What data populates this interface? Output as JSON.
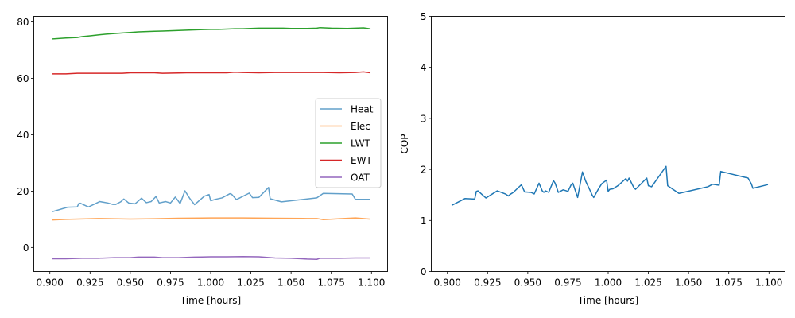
{
  "chart_data": [
    {
      "type": "line",
      "title": "",
      "xlabel": "Time [hours]",
      "ylabel": "",
      "xlim": [
        0.89,
        1.11
      ],
      "ylim": [
        -8.5,
        82
      ],
      "x_ticks": [
        0.9,
        0.925,
        0.95,
        0.975,
        1.0,
        1.025,
        1.05,
        1.075,
        1.1
      ],
      "x_tick_labels": [
        "0.900",
        "0.925",
        "0.950",
        "0.975",
        "1.000",
        "1.025",
        "1.050",
        "1.075",
        "1.100"
      ],
      "y_ticks": [
        0,
        20,
        40,
        60,
        80
      ],
      "y_tick_labels": [
        "0",
        "20",
        "40",
        "60",
        "80"
      ],
      "grid": false,
      "legend": "right",
      "series": [
        {
          "name": "Heat",
          "color": "#1f77b4",
          "opacity": 0.7,
          "x": [
            0.902,
            0.911,
            0.917,
            0.918,
            0.919,
            0.924,
            0.931,
            0.936,
            0.939,
            0.941,
            0.944,
            0.946,
            0.949,
            0.953,
            0.957,
            0.96,
            0.963,
            0.966,
            0.968,
            0.972,
            0.975,
            0.978,
            0.981,
            0.984,
            0.987,
            0.99,
            0.996,
            0.999,
            1.0,
            1.003,
            1.007,
            1.012,
            1.013,
            1.016,
            1.024,
            1.026,
            1.03,
            1.036,
            1.037,
            1.044,
            1.066,
            1.07,
            1.088,
            1.09,
            1.099
          ],
          "y": [
            12.8,
            14.3,
            14.4,
            15.6,
            15.7,
            14.4,
            16.3,
            15.8,
            15.3,
            15.3,
            16.2,
            17.2,
            15.8,
            15.5,
            17.5,
            15.9,
            16.3,
            18.1,
            15.8,
            16.3,
            15.8,
            17.9,
            15.6,
            20.1,
            17.4,
            15.2,
            18.2,
            18.8,
            16.6,
            17.1,
            17.6,
            19.1,
            18.9,
            17.0,
            19.3,
            17.7,
            17.8,
            21.3,
            17.3,
            16.2,
            17.6,
            19.2,
            19.0,
            17.1,
            17.1
          ]
        },
        {
          "name": "Elec",
          "color": "#ff7f0e",
          "opacity": 0.7,
          "x": [
            0.902,
            0.91,
            0.93,
            0.95,
            0.965,
            0.98,
            1.0,
            1.02,
            1.04,
            1.06,
            1.066,
            1.07,
            1.08,
            1.09,
            1.099
          ],
          "y": [
            9.8,
            10.0,
            10.3,
            10.1,
            10.2,
            10.4,
            10.5,
            10.5,
            10.4,
            10.3,
            10.3,
            9.9,
            10.2,
            10.5,
            10.1
          ]
        },
        {
          "name": "LWT",
          "color": "#2ca02c",
          "opacity": 1,
          "x": [
            0.902,
            0.91,
            0.917,
            0.92,
            0.925,
            0.93,
            0.935,
            0.94,
            0.945,
            0.95,
            0.955,
            0.96,
            0.965,
            0.97,
            0.975,
            0.98,
            0.985,
            0.99,
            0.995,
            1.0,
            1.005,
            1.01,
            1.015,
            1.02,
            1.025,
            1.03,
            1.035,
            1.04,
            1.045,
            1.05,
            1.06,
            1.066,
            1.068,
            1.075,
            1.085,
            1.09,
            1.095,
            1.099
          ],
          "y": [
            74.0,
            74.3,
            74.5,
            74.8,
            75.1,
            75.4,
            75.7,
            75.9,
            76.1,
            76.3,
            76.5,
            76.6,
            76.7,
            76.8,
            76.9,
            77.0,
            77.1,
            77.2,
            77.3,
            77.4,
            77.4,
            77.5,
            77.6,
            77.6,
            77.7,
            77.8,
            77.8,
            77.8,
            77.8,
            77.7,
            77.7,
            77.8,
            78.0,
            77.8,
            77.7,
            77.8,
            77.9,
            77.6
          ]
        },
        {
          "name": "EWT",
          "color": "#d62728",
          "opacity": 1,
          "x": [
            0.902,
            0.91,
            0.917,
            0.93,
            0.94,
            0.945,
            0.95,
            0.96,
            0.965,
            0.97,
            0.98,
            0.985,
            0.99,
            1.0,
            1.01,
            1.015,
            1.02,
            1.03,
            1.04,
            1.05,
            1.06,
            1.07,
            1.08,
            1.09,
            1.095,
            1.099
          ],
          "y": [
            61.6,
            61.6,
            61.8,
            61.8,
            61.8,
            61.8,
            62.0,
            62.0,
            62.0,
            61.8,
            61.9,
            62.0,
            62.0,
            62.0,
            62.0,
            62.2,
            62.1,
            62.0,
            62.1,
            62.1,
            62.1,
            62.1,
            62.0,
            62.1,
            62.3,
            62.0
          ]
        },
        {
          "name": "OAT",
          "color": "#9467bd",
          "opacity": 1,
          "x": [
            0.902,
            0.91,
            0.92,
            0.93,
            0.94,
            0.95,
            0.955,
            0.96,
            0.965,
            0.97,
            0.98,
            0.99,
            1.0,
            1.01,
            1.02,
            1.03,
            1.04,
            1.05,
            1.06,
            1.066,
            1.068,
            1.08,
            1.09,
            1.099
          ],
          "y": [
            -4.0,
            -4.0,
            -3.8,
            -3.8,
            -3.6,
            -3.6,
            -3.4,
            -3.4,
            -3.4,
            -3.6,
            -3.6,
            -3.4,
            -3.3,
            -3.3,
            -3.2,
            -3.3,
            -3.7,
            -3.8,
            -4.1,
            -4.2,
            -3.8,
            -3.8,
            -3.7,
            -3.7
          ]
        }
      ]
    },
    {
      "type": "line",
      "title": "",
      "xlabel": "Time [hours]",
      "ylabel": "COP",
      "xlim": [
        0.89,
        1.11
      ],
      "ylim": [
        0,
        5
      ],
      "x_ticks": [
        0.9,
        0.925,
        0.95,
        0.975,
        1.0,
        1.025,
        1.05,
        1.075,
        1.1
      ],
      "x_tick_labels": [
        "0.900",
        "0.925",
        "0.950",
        "0.975",
        "1.000",
        "1.025",
        "1.050",
        "1.075",
        "1.100"
      ],
      "y_ticks": [
        0,
        1,
        2,
        3,
        4,
        5
      ],
      "y_tick_labels": [
        "0",
        "1",
        "2",
        "3",
        "4",
        "5"
      ],
      "grid": false,
      "series": [
        {
          "color": "#1f77b4",
          "opacity": 1,
          "x": [
            0.903,
            0.911,
            0.917,
            0.918,
            0.919,
            0.924,
            0.931,
            0.936,
            0.938,
            0.939,
            0.941,
            0.946,
            0.948,
            0.952,
            0.954,
            0.957,
            0.959,
            0.96,
            0.961,
            0.963,
            0.966,
            0.967,
            0.969,
            0.972,
            0.975,
            0.977,
            0.978,
            0.981,
            0.984,
            0.986,
            0.989,
            0.99,
            0.991,
            0.994,
            0.996,
            0.999,
            1.0,
            1.001,
            1.003,
            1.006,
            1.011,
            1.012,
            1.013,
            1.016,
            1.017,
            1.024,
            1.025,
            1.027,
            1.036,
            1.037,
            1.044,
            1.062,
            1.065,
            1.067,
            1.069,
            1.07,
            1.087,
            1.089,
            1.09,
            1.099
          ],
          "y": [
            1.3,
            1.43,
            1.42,
            1.57,
            1.58,
            1.44,
            1.58,
            1.52,
            1.48,
            1.51,
            1.55,
            1.7,
            1.56,
            1.55,
            1.52,
            1.73,
            1.58,
            1.55,
            1.58,
            1.55,
            1.78,
            1.73,
            1.55,
            1.6,
            1.57,
            1.7,
            1.73,
            1.45,
            1.95,
            1.77,
            1.57,
            1.5,
            1.45,
            1.62,
            1.72,
            1.79,
            1.57,
            1.61,
            1.62,
            1.68,
            1.82,
            1.77,
            1.83,
            1.64,
            1.61,
            1.83,
            1.68,
            1.66,
            2.06,
            1.68,
            1.53,
            1.66,
            1.71,
            1.7,
            1.69,
            1.96,
            1.83,
            1.72,
            1.63,
            1.7
          ]
        }
      ]
    }
  ]
}
